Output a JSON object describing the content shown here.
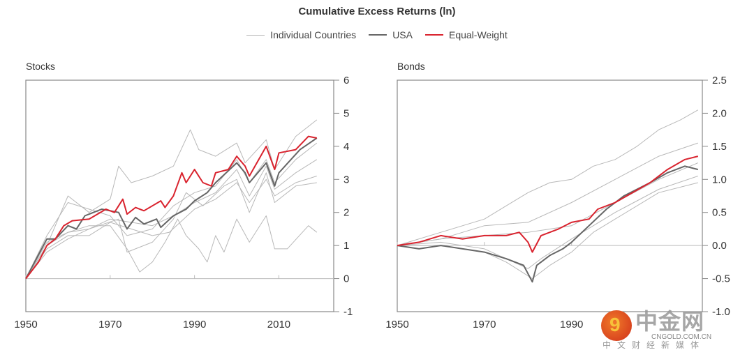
{
  "title": "Cumulative Excess Returns (ln)",
  "legend": [
    {
      "label": "Individual Countries",
      "color": "#b5b5b5"
    },
    {
      "label": "USA",
      "color": "#666666"
    },
    {
      "label": "Equal-Weight",
      "color": "#d9232e"
    }
  ],
  "watermark": {
    "name": "中金网",
    "url": "CNGOLD.COM.CN",
    "tagline": "中文财经新媒体",
    "glyph": "9"
  },
  "chart_data": [
    {
      "type": "line",
      "title": "Stocks",
      "xlim": [
        1950,
        2023
      ],
      "ylim": [
        -1,
        6
      ],
      "xticks": [
        "1950",
        "1970",
        "1990",
        "2010"
      ],
      "xtick_values": [
        1950,
        1970,
        1990,
        2010
      ],
      "yticks": [
        "6",
        "5",
        "4",
        "3",
        "2",
        "1",
        "0",
        "-1"
      ],
      "ytick_values": [
        6,
        5,
        4,
        3,
        2,
        1,
        0,
        -1
      ],
      "series": [
        {
          "name": "Individual Countries",
          "points": [
            [
              1950,
              0
            ],
            [
              1955,
              1.0
            ],
            [
              1960,
              2.5
            ],
            [
              1965,
              2.0
            ],
            [
              1970,
              2.4
            ],
            [
              1972,
              3.4
            ],
            [
              1975,
              2.9
            ],
            [
              1980,
              3.1
            ],
            [
              1985,
              3.4
            ],
            [
              1989,
              4.5
            ],
            [
              1991,
              3.9
            ],
            [
              1995,
              3.7
            ],
            [
              2000,
              4.1
            ],
            [
              2002,
              3.5
            ],
            [
              2007,
              4.2
            ],
            [
              2009,
              3.3
            ],
            [
              2014,
              4.3
            ],
            [
              2019,
              4.8
            ]
          ]
        },
        {
          "name": "Individual Countries",
          "points": [
            [
              1950,
              0
            ],
            [
              1955,
              1.1
            ],
            [
              1960,
              1.4
            ],
            [
              1965,
              1.6
            ],
            [
              1970,
              1.6
            ],
            [
              1974,
              0.9
            ],
            [
              1977,
              0.2
            ],
            [
              1980,
              0.5
            ],
            [
              1983,
              1.1
            ],
            [
              1986,
              1.8
            ],
            [
              1988,
              1.3
            ],
            [
              1991,
              0.9
            ],
            [
              1993,
              0.5
            ],
            [
              1995,
              1.3
            ],
            [
              1997,
              0.8
            ],
            [
              2000,
              1.8
            ],
            [
              2003,
              1.1
            ],
            [
              2007,
              1.9
            ],
            [
              2009,
              0.9
            ],
            [
              2012,
              0.9
            ],
            [
              2017,
              1.6
            ],
            [
              2019,
              1.4
            ]
          ]
        },
        {
          "name": "Individual Countries",
          "points": [
            [
              1950,
              0
            ],
            [
              1955,
              1.0
            ],
            [
              1960,
              1.4
            ],
            [
              1965,
              1.5
            ],
            [
              1972,
              1.8
            ],
            [
              1974,
              0.8
            ],
            [
              1980,
              1.1
            ],
            [
              1985,
              1.8
            ],
            [
              1988,
              2.6
            ],
            [
              1992,
              2.2
            ],
            [
              1997,
              2.8
            ],
            [
              2000,
              3.0
            ],
            [
              2003,
              2.0
            ],
            [
              2007,
              3.2
            ],
            [
              2009,
              2.3
            ],
            [
              2014,
              2.8
            ],
            [
              2019,
              2.9
            ]
          ]
        },
        {
          "name": "Individual Countries",
          "points": [
            [
              1950,
              0
            ],
            [
              1955,
              0.8
            ],
            [
              1960,
              1.2
            ],
            [
              1965,
              1.5
            ],
            [
              1970,
              1.8
            ],
            [
              1975,
              1.7
            ],
            [
              1980,
              1.6
            ],
            [
              1985,
              1.9
            ],
            [
              1990,
              2.3
            ],
            [
              1995,
              2.6
            ],
            [
              2000,
              3.3
            ],
            [
              2003,
              2.5
            ],
            [
              2007,
              3.4
            ],
            [
              2009,
              2.7
            ],
            [
              2014,
              3.2
            ],
            [
              2019,
              3.6
            ]
          ]
        },
        {
          "name": "Individual Countries",
          "points": [
            [
              1950,
              0
            ],
            [
              1955,
              1.3
            ],
            [
              1960,
              2.3
            ],
            [
              1965,
              2.1
            ],
            [
              1970,
              1.9
            ],
            [
              1974,
              1.3
            ],
            [
              1980,
              1.5
            ],
            [
              1985,
              2.2
            ],
            [
              1990,
              2.6
            ],
            [
              1995,
              2.8
            ],
            [
              2000,
              3.6
            ],
            [
              2003,
              2.9
            ],
            [
              2007,
              3.6
            ],
            [
              2009,
              2.9
            ],
            [
              2014,
              3.6
            ],
            [
              2019,
              4.1
            ]
          ]
        },
        {
          "name": "Individual Countries",
          "points": [
            [
              1950,
              0
            ],
            [
              1955,
              0.9
            ],
            [
              1960,
              1.3
            ],
            [
              1965,
              1.3
            ],
            [
              1970,
              1.7
            ],
            [
              1975,
              1.5
            ],
            [
              1980,
              1.3
            ],
            [
              1984,
              1.4
            ],
            [
              1990,
              2.1
            ],
            [
              1995,
              2.4
            ],
            [
              2000,
              2.9
            ],
            [
              2003,
              2.3
            ],
            [
              2007,
              3.0
            ],
            [
              2009,
              2.5
            ],
            [
              2014,
              2.9
            ],
            [
              2019,
              3.1
            ]
          ]
        },
        {
          "name": "USA",
          "points": [
            [
              1950,
              0
            ],
            [
              1955,
              1.2
            ],
            [
              1957,
              1.2
            ],
            [
              1960,
              1.6
            ],
            [
              1962,
              1.5
            ],
            [
              1964,
              1.9
            ],
            [
              1968,
              2.1
            ],
            [
              1972,
              2.0
            ],
            [
              1974,
              1.5
            ],
            [
              1976,
              1.85
            ],
            [
              1978,
              1.65
            ],
            [
              1981,
              1.8
            ],
            [
              1982,
              1.55
            ],
            [
              1985,
              1.9
            ],
            [
              1988,
              2.1
            ],
            [
              1990,
              2.35
            ],
            [
              1993,
              2.6
            ],
            [
              1995,
              2.9
            ],
            [
              2000,
              3.5
            ],
            [
              2002,
              3.2
            ],
            [
              2003,
              2.9
            ],
            [
              2007,
              3.5
            ],
            [
              2009,
              2.8
            ],
            [
              2010,
              3.2
            ],
            [
              2015,
              3.9
            ],
            [
              2019,
              4.25
            ]
          ]
        },
        {
          "name": "Equal-Weight",
          "points": [
            [
              1950,
              0
            ],
            [
              1953,
              0.5
            ],
            [
              1955,
              1.0
            ],
            [
              1957,
              1.2
            ],
            [
              1959,
              1.6
            ],
            [
              1961,
              1.75
            ],
            [
              1965,
              1.8
            ],
            [
              1969,
              2.1
            ],
            [
              1971,
              2.0
            ],
            [
              1973,
              2.4
            ],
            [
              1974,
              1.95
            ],
            [
              1976,
              2.15
            ],
            [
              1978,
              2.05
            ],
            [
              1982,
              2.35
            ],
            [
              1983,
              2.15
            ],
            [
              1985,
              2.5
            ],
            [
              1987,
              3.2
            ],
            [
              1988,
              2.9
            ],
            [
              1990,
              3.3
            ],
            [
              1992,
              2.9
            ],
            [
              1994,
              2.8
            ],
            [
              1995,
              3.2
            ],
            [
              1998,
              3.3
            ],
            [
              2000,
              3.7
            ],
            [
              2002,
              3.4
            ],
            [
              2003,
              3.1
            ],
            [
              2007,
              4.0
            ],
            [
              2009,
              3.3
            ],
            [
              2010,
              3.8
            ],
            [
              2014,
              3.9
            ],
            [
              2017,
              4.3
            ],
            [
              2019,
              4.25
            ]
          ]
        }
      ]
    },
    {
      "type": "line",
      "title": "Bonds",
      "xlim": [
        1950,
        2020
      ],
      "ylim": [
        -1,
        2.5
      ],
      "xticks": [
        "1950",
        "1970",
        "1990"
      ],
      "xtick_values": [
        1950,
        1970,
        1990
      ],
      "yticks": [
        "2.5",
        "2.0",
        "1.5",
        "1.0",
        "0.5",
        "0.0",
        "-0.5",
        "-1.0"
      ],
      "ytick_values": [
        2.5,
        2.0,
        1.5,
        1.0,
        0.5,
        0.0,
        -0.5,
        -1.0
      ],
      "series": [
        {
          "name": "Individual Countries",
          "points": [
            [
              1950,
              0
            ],
            [
              1960,
              0.2
            ],
            [
              1970,
              0.4
            ],
            [
              1975,
              0.6
            ],
            [
              1980,
              0.8
            ],
            [
              1985,
              0.95
            ],
            [
              1990,
              1.0
            ],
            [
              1995,
              1.2
            ],
            [
              2000,
              1.3
            ],
            [
              2005,
              1.5
            ],
            [
              2010,
              1.75
            ],
            [
              2015,
              1.9
            ],
            [
              2019,
              2.05
            ]
          ]
        },
        {
          "name": "Individual Countries",
          "points": [
            [
              1950,
              0
            ],
            [
              1960,
              0.1
            ],
            [
              1970,
              0.3
            ],
            [
              1980,
              0.35
            ],
            [
              1990,
              0.65
            ],
            [
              2000,
              1.0
            ],
            [
              2010,
              1.35
            ],
            [
              2019,
              1.55
            ]
          ]
        },
        {
          "name": "Individual Countries",
          "points": [
            [
              1950,
              0
            ],
            [
              1960,
              0.05
            ],
            [
              1970,
              -0.05
            ],
            [
              1980,
              -0.35
            ],
            [
              1983,
              -0.2
            ],
            [
              1990,
              0.1
            ],
            [
              2000,
              0.5
            ],
            [
              2010,
              0.85
            ],
            [
              2019,
              1.05
            ]
          ]
        },
        {
          "name": "Individual Countries",
          "points": [
            [
              1950,
              0
            ],
            [
              1960,
              0.0
            ],
            [
              1970,
              -0.1
            ],
            [
              1975,
              -0.25
            ],
            [
              1981,
              -0.5
            ],
            [
              1985,
              -0.3
            ],
            [
              1990,
              -0.1
            ],
            [
              1995,
              0.2
            ],
            [
              2000,
              0.4
            ],
            [
              2010,
              0.8
            ],
            [
              2019,
              0.95
            ]
          ]
        },
        {
          "name": "Individual Countries",
          "points": [
            [
              1950,
              0
            ],
            [
              1960,
              0.1
            ],
            [
              1970,
              0.15
            ],
            [
              1980,
              0.2
            ],
            [
              1990,
              0.3
            ],
            [
              2000,
              0.65
            ],
            [
              2010,
              1.0
            ],
            [
              2019,
              1.25
            ]
          ]
        },
        {
          "name": "USA",
          "points": [
            [
              1950,
              0
            ],
            [
              1955,
              -0.05
            ],
            [
              1960,
              0.0
            ],
            [
              1965,
              -0.05
            ],
            [
              1970,
              -0.1
            ],
            [
              1975,
              -0.2
            ],
            [
              1979,
              -0.3
            ],
            [
              1981,
              -0.55
            ],
            [
              1982,
              -0.3
            ],
            [
              1985,
              -0.15
            ],
            [
              1988,
              -0.05
            ],
            [
              1990,
              0.05
            ],
            [
              1994,
              0.3
            ],
            [
              1998,
              0.55
            ],
            [
              2002,
              0.75
            ],
            [
              2008,
              0.95
            ],
            [
              2012,
              1.1
            ],
            [
              2016,
              1.2
            ],
            [
              2019,
              1.15
            ]
          ]
        },
        {
          "name": "Equal-Weight",
          "points": [
            [
              1950,
              0
            ],
            [
              1955,
              0.05
            ],
            [
              1960,
              0.15
            ],
            [
              1965,
              0.1
            ],
            [
              1970,
              0.15
            ],
            [
              1975,
              0.15
            ],
            [
              1978,
              0.2
            ],
            [
              1980,
              0.05
            ],
            [
              1981,
              -0.1
            ],
            [
              1983,
              0.15
            ],
            [
              1985,
              0.2
            ],
            [
              1987,
              0.25
            ],
            [
              1990,
              0.35
            ],
            [
              1994,
              0.4
            ],
            [
              1996,
              0.55
            ],
            [
              2000,
              0.65
            ],
            [
              2004,
              0.8
            ],
            [
              2008,
              0.95
            ],
            [
              2012,
              1.15
            ],
            [
              2016,
              1.3
            ],
            [
              2019,
              1.35
            ]
          ]
        }
      ]
    }
  ]
}
